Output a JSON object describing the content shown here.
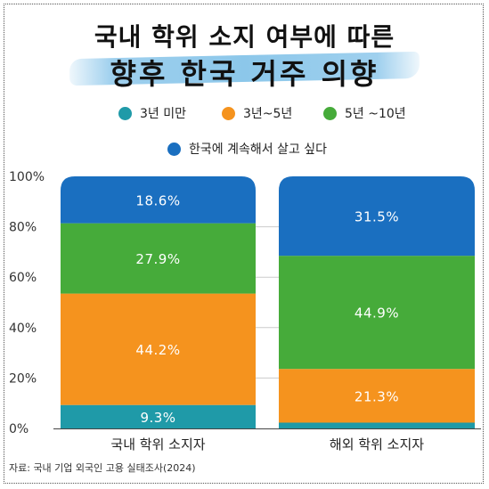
{
  "title_line1": "국내 학위 소지 여부에 따른",
  "title_line2": "향후 한국 거주 의향",
  "source": "자료: 국내 기업 외국인 고용 실태조사(2024)",
  "chart_data": {
    "type": "bar",
    "stacked": true,
    "categories": [
      "국내 학위 소지자",
      "해외 학위 소지자"
    ],
    "series": [
      {
        "name": "3년 미만",
        "color": "#1f9aa8",
        "values": [
          9.3,
          2.3
        ],
        "labels": [
          "9.3%",
          ""
        ]
      },
      {
        "name": "3년~5년",
        "color": "#f5931e",
        "values": [
          44.2,
          21.3
        ],
        "labels": [
          "44.2%",
          "21.3%"
        ]
      },
      {
        "name": "5년 ~10년",
        "color": "#46ab3a",
        "values": [
          27.9,
          44.9
        ],
        "labels": [
          "27.9%",
          "44.9%"
        ]
      },
      {
        "name": "한국에 계속해서 살고 싶다",
        "color": "#1a6fc0",
        "values": [
          18.6,
          31.5
        ],
        "labels": [
          "18.6%",
          "31.5%"
        ]
      }
    ],
    "y_ticks": [
      "0%",
      "20%",
      "40%",
      "60%",
      "80%",
      "100%"
    ],
    "ylim": [
      0,
      100
    ],
    "legend_position": "top"
  }
}
